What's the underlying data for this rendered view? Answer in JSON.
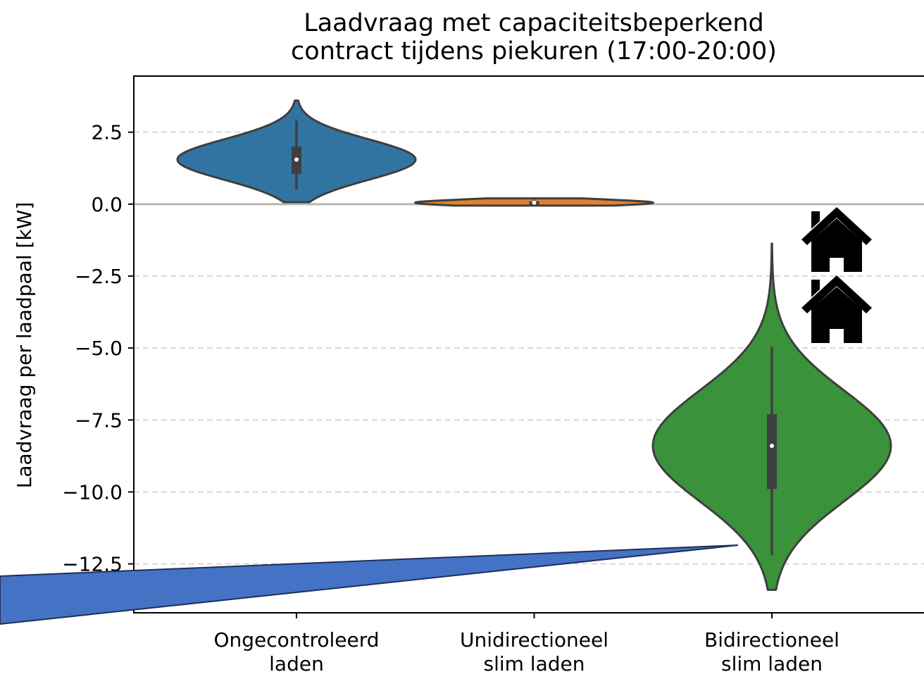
{
  "chart_data": {
    "type": "violin",
    "title": "Laadvraag met capaciteitsbeperkend\ncontract tijdens piekuren (17:00-20:00)",
    "ylabel": "Laadvraag per laadpaal [kW]",
    "categories": [
      "Ongecontroleerd\nladen",
      "Unidirectioneel\nslim laden",
      "Bidirectioneel\nslim laden"
    ],
    "colors": [
      "#3274a1",
      "#e1812c",
      "#3a923a"
    ],
    "violins": [
      {
        "max": 3.6,
        "whisker_high": 2.9,
        "q3": 2.0,
        "median": 1.55,
        "q1": 1.05,
        "whisker_low": 0.5,
        "min": 0.07
      },
      {
        "max": 0.2,
        "whisker_high": 0.15,
        "q3": 0.1,
        "median": 0.05,
        "q1": -0.05,
        "whisker_low": -0.05,
        "min": -0.05
      },
      {
        "max": -1.37,
        "whisker_high": -4.95,
        "q3": -7.3,
        "median": -8.4,
        "q1": -9.9,
        "whisker_low": -12.2,
        "min": -13.4
      }
    ],
    "ylim": [
      -14.2,
      4.45
    ],
    "yticks": [
      {
        "value": -12.5,
        "label": "−12.5"
      },
      {
        "value": -10,
        "label": "−10.0"
      },
      {
        "value": -7.5,
        "label": "−7.5"
      },
      {
        "value": -5,
        "label": "−5.0"
      },
      {
        "value": -2.5,
        "label": "−2.5"
      },
      {
        "value": 0,
        "label": "0.0"
      },
      2.5
    ],
    "grid": true,
    "reference_line": 0
  }
}
